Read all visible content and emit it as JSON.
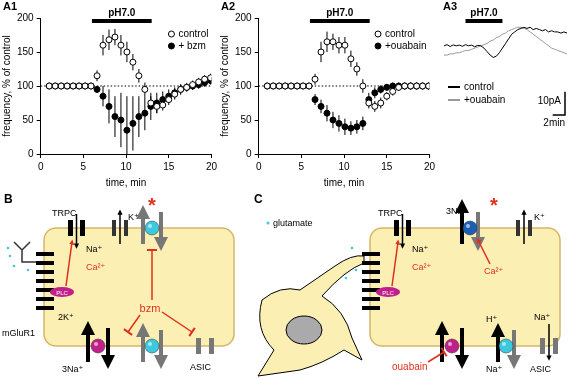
{
  "chart_data": [
    {
      "type": "scatter",
      "panel_label": "A1",
      "x_label": "time, min",
      "y_label": "frequency, % of control",
      "x": [
        1,
        1.7,
        2.4,
        3.1,
        3.8,
        4.5,
        5.2,
        5.9,
        6.6,
        7.3,
        8,
        8.7,
        9.4,
        10.1,
        10.8,
        11.5,
        12.2,
        12.9,
        13.6,
        14.3,
        15,
        15.7,
        16.4,
        17.1,
        17.8,
        18.5,
        19.2,
        19.9
      ],
      "xlim": [
        0,
        20
      ],
      "xticks": [
        0,
        5,
        10,
        15,
        20
      ],
      "ylim": [
        0,
        200
      ],
      "yticks": [
        0,
        50,
        100,
        150,
        200
      ],
      "grid": false,
      "legend": "upper right",
      "reference_y": 100,
      "annotations": [
        {
          "text": "pH7.0",
          "x": [
            6,
            13
          ]
        }
      ],
      "series": [
        {
          "name": "control",
          "color": "#000000",
          "marker": "circle_open",
          "values": [
            100,
            100,
            100,
            100,
            100,
            100,
            100,
            100,
            115,
            160,
            168,
            172,
            160,
            150,
            135,
            115,
            95,
            75,
            70,
            72,
            80,
            88,
            95,
            98,
            102,
            106,
            110,
            112
          ],
          "errors": [
            0,
            0,
            0,
            0,
            0,
            0,
            0,
            0,
            8,
            15,
            15,
            12,
            15,
            15,
            12,
            10,
            10,
            10,
            10,
            8,
            8,
            8,
            6,
            6,
            6,
            6,
            6,
            6
          ]
        },
        {
          "name": "+ bzm",
          "color": "#000000",
          "marker": "circle",
          "values": [
            100,
            100,
            100,
            100,
            100,
            100,
            100,
            100,
            95,
            85,
            70,
            55,
            50,
            35,
            45,
            55,
            60,
            70,
            75,
            80,
            85,
            90,
            95,
            98,
            100,
            102,
            105,
            108
          ],
          "errors": [
            0,
            0,
            0,
            0,
            0,
            0,
            0,
            0,
            5,
            15,
            25,
            30,
            40,
            50,
            40,
            30,
            25,
            20,
            15,
            12,
            10,
            8,
            8,
            6,
            6,
            6,
            6,
            6
          ]
        }
      ]
    },
    {
      "type": "scatter",
      "panel_label": "A2",
      "x_label": "time, min",
      "y_label": "frequency, % of control",
      "x": [
        1,
        1.7,
        2.4,
        3.1,
        3.8,
        4.5,
        5.2,
        5.9,
        6.6,
        7.3,
        8,
        8.7,
        9.4,
        10.1,
        10.8,
        11.5,
        12.2,
        12.9,
        13.6,
        14.3,
        15,
        15.7,
        16.4,
        17.1,
        17.8,
        18.5,
        19.2,
        19.9
      ],
      "xlim": [
        0,
        20
      ],
      "xticks": [
        0,
        5,
        10,
        15,
        20
      ],
      "ylim": [
        0,
        200
      ],
      "yticks": [
        0,
        50,
        100,
        150,
        200
      ],
      "grid": false,
      "legend": "upper right",
      "reference_y": 100,
      "annotations": [
        {
          "text": "pH7.0",
          "x": [
            6,
            13
          ]
        }
      ],
      "series": [
        {
          "name": "control",
          "color": "#000000",
          "marker": "circle_open",
          "values": [
            100,
            100,
            100,
            100,
            100,
            100,
            100,
            100,
            110,
            150,
            165,
            165,
            160,
            160,
            140,
            125,
            100,
            75,
            70,
            75,
            85,
            92,
            98,
            100,
            100,
            100,
            100,
            100
          ],
          "errors": [
            0,
            0,
            0,
            0,
            0,
            0,
            0,
            0,
            8,
            15,
            15,
            12,
            12,
            12,
            12,
            10,
            10,
            8,
            8,
            8,
            6,
            6,
            5,
            5,
            5,
            5,
            5,
            5
          ]
        },
        {
          "name": "+ouabain",
          "color": "#000000",
          "marker": "circle",
          "values": [
            100,
            100,
            100,
            100,
            100,
            100,
            100,
            100,
            80,
            70,
            60,
            50,
            45,
            40,
            38,
            40,
            45,
            80,
            90,
            95,
            98,
            100,
            100,
            100,
            100,
            100,
            100,
            100
          ],
          "errors": [
            0,
            0,
            0,
            0,
            0,
            0,
            0,
            0,
            8,
            10,
            12,
            12,
            12,
            12,
            10,
            10,
            10,
            10,
            8,
            6,
            5,
            5,
            5,
            5,
            5,
            5,
            5,
            5
          ]
        }
      ]
    },
    {
      "type": "line",
      "panel_label": "A3",
      "x": [
        0,
        0.5,
        1,
        1.5,
        2,
        2.5,
        3,
        3.5,
        4,
        4.5,
        5,
        5.5,
        6,
        6.5,
        7,
        7.5,
        8,
        8.5,
        9,
        9.5,
        10,
        10.5,
        11,
        11.5,
        12,
        12.5,
        13,
        13.5,
        14,
        14.5,
        15,
        15.5,
        16,
        16.5,
        17,
        17.5,
        18,
        18.5,
        19,
        19.5,
        20
      ],
      "xlim": [
        0,
        20
      ],
      "ylim": [
        -10,
        12
      ],
      "tick_labels": false,
      "legend": "lower left",
      "annotations": [
        {
          "text": "pH7.0",
          "x": [
            3.5,
            9.5
          ]
        }
      ],
      "scale_bar": {
        "x": 2,
        "x_label": "2min",
        "y": 10,
        "y_label": "10pA"
      },
      "series": [
        {
          "name": "control",
          "color": "#000000",
          "line_style": "solid",
          "values": [
            0,
            0.5,
            -0.3,
            0.4,
            0,
            0.3,
            -0.2,
            0.5,
            0,
            0.3,
            -0.4,
            0.2,
            0,
            -1,
            -2.5,
            -4,
            -5,
            -4.5,
            -3,
            -1,
            1,
            3,
            5,
            6,
            7,
            7.5,
            8,
            7.5,
            8,
            7,
            7.5,
            7,
            6.5,
            7,
            6,
            6.5,
            6,
            6,
            5.5,
            6,
            5.5
          ]
        },
        {
          "name": "+ouabain",
          "color": "#999999",
          "line_style": "solid",
          "values": [
            -4,
            -4,
            -3.5,
            -3.5,
            -3,
            -3,
            -2.5,
            -2,
            -2,
            -1.5,
            -1,
            -0.5,
            0,
            0.5,
            1,
            2,
            2.5,
            3.5,
            4,
            5,
            5.5,
            6.5,
            7,
            7.5,
            8,
            8,
            7.5,
            7,
            6,
            5,
            4,
            3,
            2,
            1,
            0,
            -1,
            -1.5,
            -2,
            -2.5,
            -3,
            -3.5
          ]
        }
      ]
    }
  ],
  "diagrams": [
    {
      "panel_label": "B",
      "texts": {
        "trpc": "TRPC",
        "k": "K⁺",
        "na": "Na⁺",
        "ca": "Ca²⁺",
        "mglur1": "mGluR1",
        "plc": "PLC",
        "bzm": "bzm",
        "k2": "2K⁺",
        "na3": "3Na⁺",
        "asic": "ASIC",
        "star": "*"
      }
    },
    {
      "panel_label": "C",
      "texts": {
        "glutamate": "glutamate",
        "trpc": "TRPC",
        "na_trpc": "Na⁺",
        "ca_trpc": "Ca²⁺",
        "na3": "3Na⁺",
        "star": "*",
        "k": "K⁺",
        "ca_pump": "Ca²⁺",
        "h": "H⁺",
        "na_nhe": "Na⁺",
        "na_asic": "Na⁺",
        "asic": "ASIC",
        "ouabain": "ouabain",
        "plc": "PLC"
      }
    }
  ]
}
